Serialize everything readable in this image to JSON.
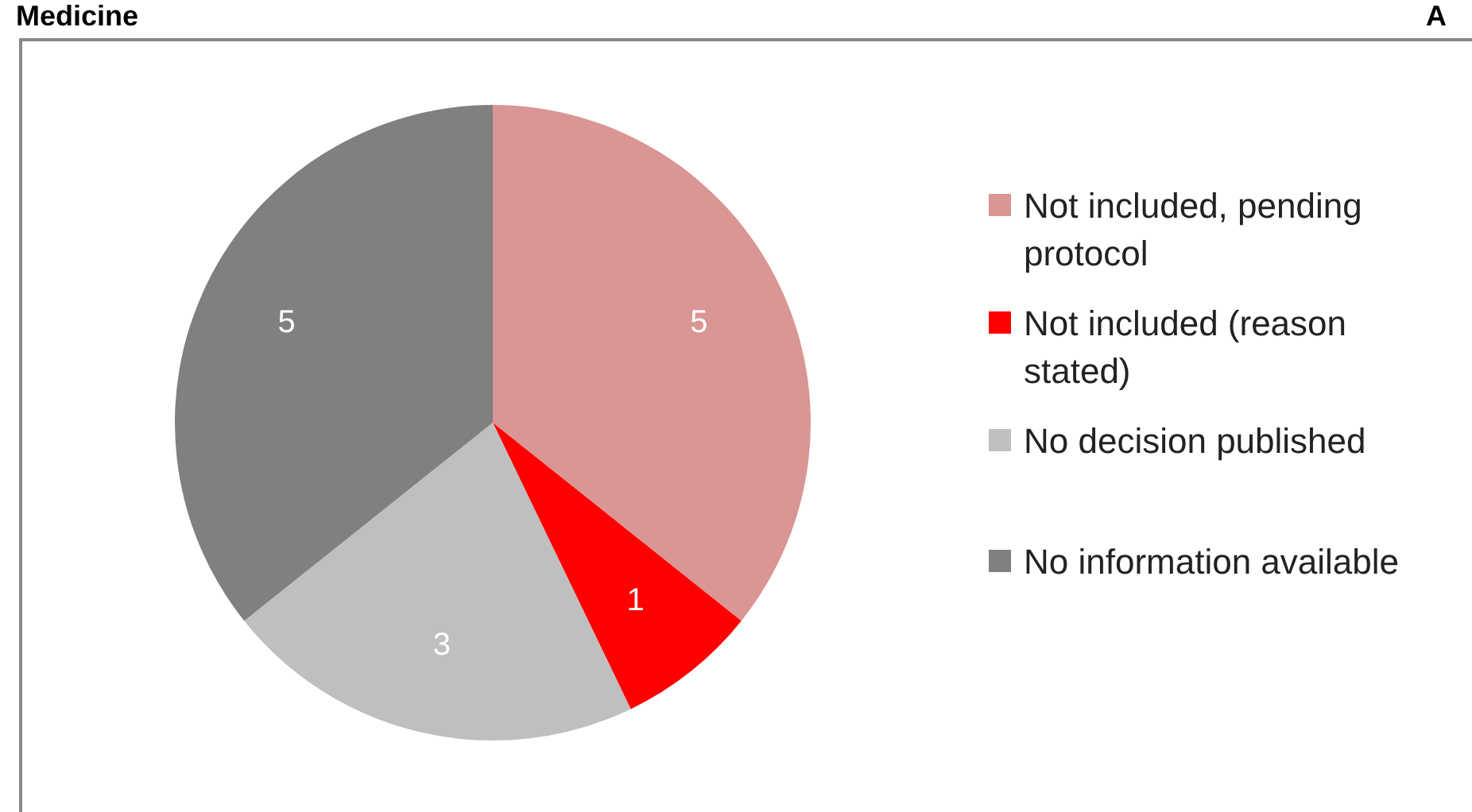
{
  "chart_data": {
    "type": "pie",
    "title": "Medicine",
    "annotations": [
      "A"
    ],
    "categories": [
      "Not included, pending protocol",
      "Not included (reason stated)",
      "No decision published",
      "No information available"
    ],
    "values": [
      5,
      1,
      3,
      5
    ],
    "colors": [
      "#d99694",
      "#ff0000",
      "#bfbfbf",
      "#808080"
    ],
    "data_labels": true,
    "legend": "right"
  }
}
